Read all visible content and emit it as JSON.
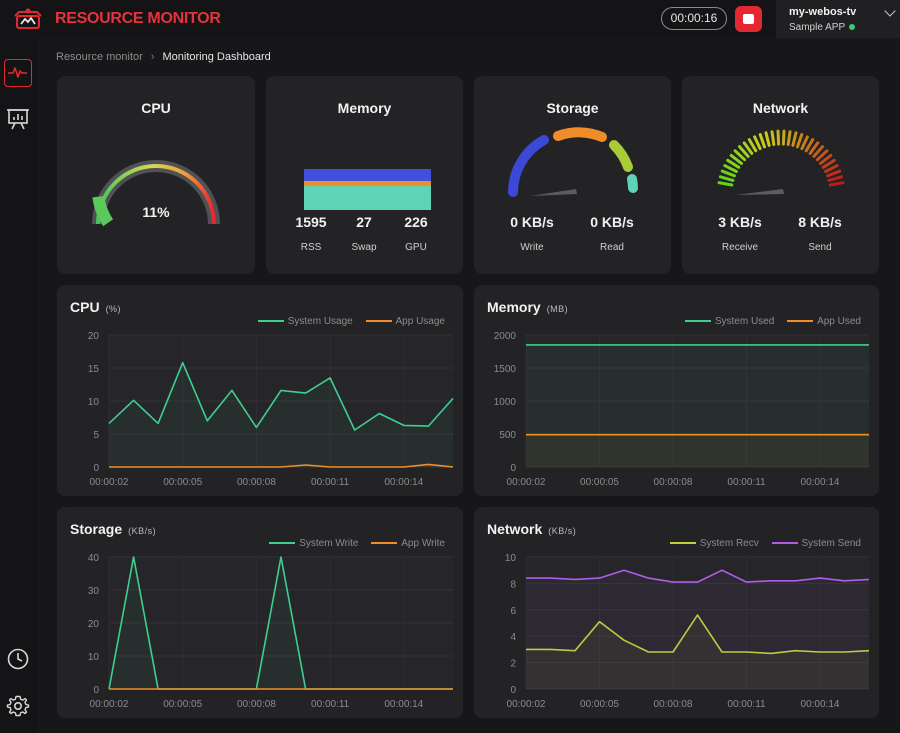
{
  "app": {
    "title": "RESOURCE MONITOR",
    "timer": "00:00:16"
  },
  "device": {
    "name": "my-webos-tv",
    "app": "Sample APP",
    "status_color": "#2fcf6a"
  },
  "sidebar": {
    "items": [
      {
        "name": "monitor",
        "icon": "activity-icon",
        "active": true
      },
      {
        "name": "report",
        "icon": "presentation-chart-icon",
        "active": false
      },
      {
        "name": "history",
        "icon": "clock-icon",
        "active": false
      },
      {
        "name": "settings",
        "icon": "gear-icon",
        "active": false
      }
    ]
  },
  "breadcrumb": {
    "root": "Resource monitor",
    "current": "Monitoring Dashboard"
  },
  "gauges": {
    "cpu": {
      "title": "CPU",
      "value": "11%",
      "percent": 11
    },
    "memory": {
      "title": "Memory",
      "stats": [
        {
          "value": "1595",
          "label": "RSS"
        },
        {
          "value": "27",
          "label": "Swap"
        },
        {
          "value": "226",
          "label": "GPU"
        }
      ]
    },
    "storage": {
      "title": "Storage",
      "stats": [
        {
          "value": "0 KB/s",
          "label": "Write"
        },
        {
          "value": "0 KB/s",
          "label": "Read"
        }
      ]
    },
    "network": {
      "title": "Network",
      "stats": [
        {
          "value": "3 KB/s",
          "label": "Receive"
        },
        {
          "value": "8 KB/s",
          "label": "Send"
        }
      ]
    }
  },
  "colors": {
    "accent": "#e32831",
    "green": "#3ecf8e",
    "orange": "#f08c2a",
    "yellow": "#c2cf3a",
    "purple": "#b25ce8"
  },
  "chart_data": [
    {
      "id": "cpu",
      "type": "line",
      "title": "CPU",
      "unit": "(%)",
      "x": [
        "00:00:02",
        "00:00:03",
        "00:00:04",
        "00:00:05",
        "00:00:06",
        "00:00:07",
        "00:00:08",
        "00:00:09",
        "00:00:10",
        "00:00:11",
        "00:00:12",
        "00:00:13",
        "00:00:14",
        "00:00:15",
        "00:00:16"
      ],
      "xticks": [
        "00:00:02",
        "00:00:05",
        "00:00:08",
        "00:00:11",
        "00:00:14"
      ],
      "ylim": [
        0,
        20
      ],
      "yticks": [
        0,
        5,
        10,
        15,
        20
      ],
      "series": [
        {
          "name": "System Usage",
          "color": "#3ecf8e",
          "values": [
            6.6,
            10.1,
            6.6,
            15.8,
            7.0,
            11.6,
            6.0,
            11.6,
            11.2,
            13.5,
            5.6,
            8.1,
            6.3,
            6.2,
            10.4
          ]
        },
        {
          "name": "App Usage",
          "color": "#f08c2a",
          "values": [
            0,
            0,
            0,
            0,
            0,
            0,
            0,
            0,
            0.3,
            0,
            0,
            0,
            0,
            0.4,
            0
          ]
        }
      ]
    },
    {
      "id": "memory",
      "type": "line",
      "title": "Memory",
      "unit": "(MB)",
      "x": [
        "00:00:02",
        "00:00:03",
        "00:00:04",
        "00:00:05",
        "00:00:06",
        "00:00:07",
        "00:00:08",
        "00:00:09",
        "00:00:10",
        "00:00:11",
        "00:00:12",
        "00:00:13",
        "00:00:14",
        "00:00:15",
        "00:00:16"
      ],
      "xticks": [
        "00:00:02",
        "00:00:05",
        "00:00:08",
        "00:00:11",
        "00:00:14"
      ],
      "ylim": [
        0,
        2000
      ],
      "yticks": [
        0,
        500,
        1000,
        1500,
        2000
      ],
      "series": [
        {
          "name": "System Used",
          "color": "#3ecf8e",
          "values": [
            1850,
            1850,
            1850,
            1850,
            1850,
            1850,
            1850,
            1850,
            1850,
            1850,
            1850,
            1850,
            1850,
            1850,
            1850
          ]
        },
        {
          "name": "App Used",
          "color": "#f08c2a",
          "values": [
            490,
            490,
            490,
            490,
            490,
            490,
            490,
            490,
            490,
            490,
            490,
            490,
            490,
            490,
            490
          ]
        }
      ]
    },
    {
      "id": "storage",
      "type": "line",
      "title": "Storage",
      "unit": "(KB/s)",
      "x": [
        "00:00:02",
        "00:00:03",
        "00:00:04",
        "00:00:05",
        "00:00:06",
        "00:00:07",
        "00:00:08",
        "00:00:09",
        "00:00:10",
        "00:00:11",
        "00:00:12",
        "00:00:13",
        "00:00:14",
        "00:00:15",
        "00:00:16"
      ],
      "xticks": [
        "00:00:02",
        "00:00:05",
        "00:00:08",
        "00:00:11",
        "00:00:14"
      ],
      "ylim": [
        0,
        40
      ],
      "yticks": [
        0,
        10,
        20,
        30,
        40
      ],
      "series": [
        {
          "name": "System Write",
          "color": "#3ecf8e",
          "values": [
            0,
            40,
            0,
            0,
            0,
            0,
            0,
            40,
            0,
            0,
            0,
            0,
            0,
            0,
            0
          ]
        },
        {
          "name": "App Write",
          "color": "#f08c2a",
          "values": [
            0,
            0,
            0,
            0,
            0,
            0,
            0,
            0,
            0,
            0,
            0,
            0,
            0,
            0,
            0
          ]
        }
      ]
    },
    {
      "id": "network",
      "type": "line",
      "title": "Network",
      "unit": "(KB/s)",
      "x": [
        "00:00:02",
        "00:00:03",
        "00:00:04",
        "00:00:05",
        "00:00:06",
        "00:00:07",
        "00:00:08",
        "00:00:09",
        "00:00:10",
        "00:00:11",
        "00:00:12",
        "00:00:13",
        "00:00:14",
        "00:00:15",
        "00:00:16"
      ],
      "xticks": [
        "00:00:02",
        "00:00:05",
        "00:00:08",
        "00:00:11",
        "00:00:14"
      ],
      "ylim": [
        0,
        10
      ],
      "yticks": [
        0,
        2,
        4,
        6,
        8,
        10
      ],
      "series": [
        {
          "name": "System Recv",
          "color": "#c2cf3a",
          "values": [
            3.0,
            3.0,
            2.9,
            5.1,
            3.7,
            2.8,
            2.8,
            5.6,
            2.8,
            2.8,
            2.7,
            2.9,
            2.8,
            2.8,
            2.9
          ]
        },
        {
          "name": "System Send",
          "color": "#b25ce8",
          "values": [
            8.4,
            8.4,
            8.3,
            8.4,
            9.0,
            8.4,
            8.1,
            8.1,
            9.0,
            8.1,
            8.2,
            8.2,
            8.4,
            8.2,
            8.3
          ]
        }
      ]
    }
  ]
}
